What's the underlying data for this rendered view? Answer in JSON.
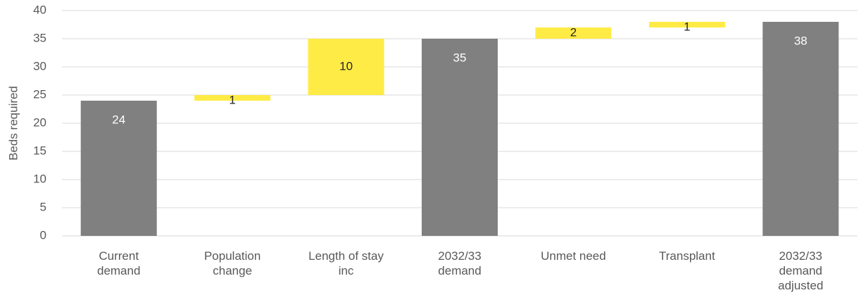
{
  "chart_data": {
    "type": "waterfall",
    "y_label": "Beds required",
    "categories": [
      "Current demand",
      "Population change",
      "Length of stay inc",
      "2032/33 demand",
      "Unmet need",
      "Transplant",
      "2032/33 demand adjusted"
    ],
    "values": [
      24,
      1,
      10,
      35,
      2,
      1,
      38
    ],
    "measure": [
      "total",
      "increase",
      "increase",
      "total",
      "increase",
      "increase",
      "total"
    ],
    "colors": {
      "total": "#808080",
      "increase": "#ffeb45"
    },
    "ylim": [
      0,
      40
    ],
    "yticks": [
      0,
      5,
      10,
      15,
      20,
      25,
      30,
      35,
      40
    ],
    "grid": true
  }
}
